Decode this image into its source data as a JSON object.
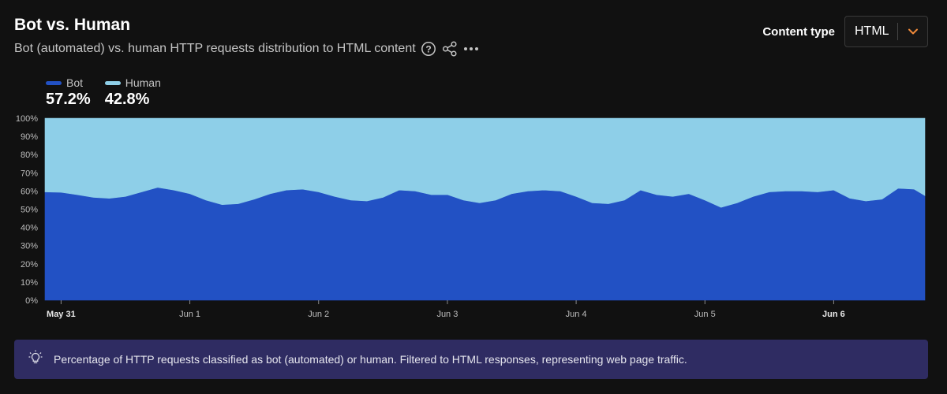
{
  "header": {
    "title": "Bot vs. Human",
    "subtitle": "Bot (automated) vs. human HTTP requests distribution to HTML content",
    "help_icon": "question-circle-icon",
    "share_icon": "share-icon",
    "more_icon": "more-horizontal-icon"
  },
  "content_type": {
    "label": "Content type",
    "selected": "HTML",
    "chevron_icon": "chevron-down-icon"
  },
  "legend": [
    {
      "name": "Bot",
      "value": "57.2%",
      "color": "#2251c4"
    },
    {
      "name": "Human",
      "value": "42.8%",
      "color": "#8ecfe8"
    }
  ],
  "note": {
    "icon": "lightbulb-icon",
    "text": "Percentage of HTTP requests classified as bot (automated) or human. Filtered to HTML responses, representing web page traffic."
  },
  "chart_data": {
    "type": "area",
    "stacked": true,
    "y_tick_labels": [
      "0%",
      "10%",
      "20%",
      "30%",
      "40%",
      "50%",
      "60%",
      "70%",
      "80%",
      "90%",
      "100%"
    ],
    "ylim": [
      0,
      100
    ],
    "x_range": [
      "May 30 21:00",
      "Jun 6 17:00"
    ],
    "x_ticks": [
      {
        "label": "May 31",
        "x": "May 31 00:00",
        "bold": true
      },
      {
        "label": "Jun 1",
        "x": "Jun 1 00:00",
        "bold": false
      },
      {
        "label": "Jun 2",
        "x": "Jun 2 00:00",
        "bold": false
      },
      {
        "label": "Jun 3",
        "x": "Jun 3 00:00",
        "bold": false
      },
      {
        "label": "Jun 4",
        "x": "Jun 4 00:00",
        "bold": false
      },
      {
        "label": "Jun 5",
        "x": "Jun 5 00:00",
        "bold": false
      },
      {
        "label": "Jun 6",
        "x": "Jun 6 00:00",
        "bold": true
      }
    ],
    "x": [
      "May 30 21:00",
      "May 31 00:00",
      "May 31 03:00",
      "May 31 06:00",
      "May 31 09:00",
      "May 31 12:00",
      "May 31 15:00",
      "May 31 18:00",
      "May 31 21:00",
      "Jun 1 00:00",
      "Jun 1 03:00",
      "Jun 1 06:00",
      "Jun 1 09:00",
      "Jun 1 12:00",
      "Jun 1 15:00",
      "Jun 1 18:00",
      "Jun 1 21:00",
      "Jun 2 00:00",
      "Jun 2 03:00",
      "Jun 2 06:00",
      "Jun 2 09:00",
      "Jun 2 12:00",
      "Jun 2 15:00",
      "Jun 2 18:00",
      "Jun 2 21:00",
      "Jun 3 00:00",
      "Jun 3 03:00",
      "Jun 3 06:00",
      "Jun 3 09:00",
      "Jun 3 12:00",
      "Jun 3 15:00",
      "Jun 3 18:00",
      "Jun 3 21:00",
      "Jun 4 00:00",
      "Jun 4 03:00",
      "Jun 4 06:00",
      "Jun 4 09:00",
      "Jun 4 12:00",
      "Jun 4 15:00",
      "Jun 4 18:00",
      "Jun 4 21:00",
      "Jun 5 00:00",
      "Jun 5 03:00",
      "Jun 5 06:00",
      "Jun 5 09:00",
      "Jun 5 12:00",
      "Jun 5 15:00",
      "Jun 5 18:00",
      "Jun 5 21:00",
      "Jun 6 00:00",
      "Jun 6 03:00",
      "Jun 6 06:00",
      "Jun 6 09:00",
      "Jun 6 12:00",
      "Jun 6 15:00",
      "Jun 6 17:00"
    ],
    "series": [
      {
        "name": "Bot",
        "color": "#2251c4",
        "values": [
          59.5,
          59.3,
          58.0,
          56.5,
          56.0,
          57.0,
          59.5,
          62.0,
          60.5,
          58.5,
          55.0,
          52.5,
          53.0,
          55.5,
          58.5,
          60.5,
          61.0,
          59.5,
          57.0,
          55.0,
          54.5,
          56.5,
          60.5,
          60.0,
          58.0,
          58.0,
          55.0,
          53.5,
          55.0,
          58.5,
          60.0,
          60.5,
          60.0,
          57.0,
          53.5,
          53.0,
          55.0,
          60.5,
          58.0,
          57.0,
          58.5,
          55.0,
          51.0,
          53.5,
          57.0,
          59.5,
          60.0,
          60.0,
          59.5,
          60.5,
          56.0,
          54.5,
          55.5,
          61.5,
          61.0,
          57.5
        ]
      },
      {
        "name": "Human",
        "color": "#8ecfe8",
        "values": [
          40.5,
          40.7,
          42.0,
          43.5,
          44.0,
          43.0,
          40.5,
          38.0,
          39.5,
          41.5,
          45.0,
          47.5,
          47.0,
          44.5,
          41.5,
          39.5,
          39.0,
          40.5,
          43.0,
          45.0,
          45.5,
          43.5,
          39.5,
          40.0,
          42.0,
          42.0,
          45.0,
          46.5,
          45.0,
          41.5,
          40.0,
          39.5,
          40.0,
          43.0,
          46.5,
          47.0,
          45.0,
          39.5,
          42.0,
          43.0,
          41.5,
          45.0,
          49.0,
          46.5,
          43.0,
          40.5,
          40.0,
          40.0,
          40.5,
          39.5,
          44.0,
          45.5,
          44.5,
          38.5,
          39.0,
          42.5
        ]
      }
    ]
  }
}
